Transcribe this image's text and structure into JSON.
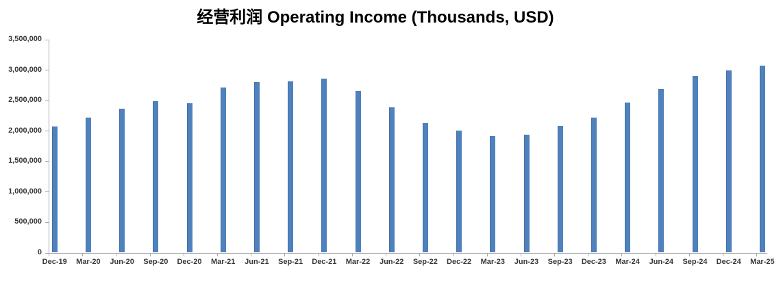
{
  "chart_data": {
    "type": "bar",
    "title": "经营利润 Operating Income (Thousands, USD)",
    "xlabel": "",
    "ylabel": "",
    "categories": [
      "Dec-19",
      "Mar-20",
      "Jun-20",
      "Sep-20",
      "Dec-20",
      "Mar-21",
      "Jun-21",
      "Sep-21",
      "Dec-21",
      "Mar-22",
      "Jun-22",
      "Sep-22",
      "Dec-22",
      "Mar-23",
      "Jun-23",
      "Sep-23",
      "Dec-23",
      "Mar-24",
      "Jun-24",
      "Sep-24",
      "Dec-24",
      "Mar-25"
    ],
    "values": [
      2070000,
      2210000,
      2360000,
      2480000,
      2450000,
      2710000,
      2800000,
      2810000,
      2860000,
      2650000,
      2380000,
      2130000,
      2000000,
      1910000,
      1930000,
      2080000,
      2220000,
      2460000,
      2690000,
      2900000,
      2990000,
      3070000
    ],
    "ylim": [
      0,
      3500000
    ],
    "ytick_interval": 500000,
    "ytick_labels": [
      "0",
      "500,000",
      "1,000,000",
      "1,500,000",
      "2,000,000",
      "2,500,000",
      "3,000,000",
      "3,500,000"
    ],
    "grid": false,
    "legend": false
  },
  "colors": {
    "bar": "#4F81BD",
    "axis": "#A3A8AE",
    "tick_label": "#383838",
    "title": "#000000",
    "background": "#FFFFFF"
  }
}
